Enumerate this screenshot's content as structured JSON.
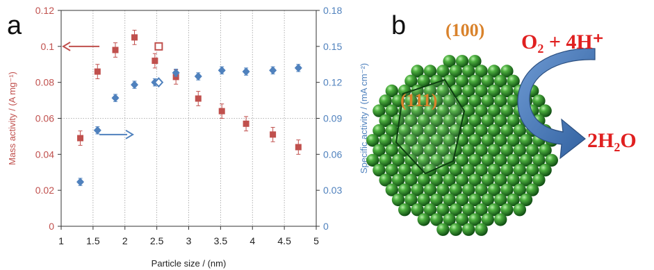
{
  "panel_a_label": "a",
  "panel_b_label": "b",
  "colors": {
    "mass": "#c0504d",
    "specific": "#4f81bd",
    "sphere": "#2f8f2f",
    "arrow": "#4a7fc1",
    "facet_text": "#d9822b",
    "reaction_text": "#e02020"
  },
  "chart_data": {
    "type": "scatter",
    "xlabel": "Particle size / (nm)",
    "ylabel_left": "Mass activity / (A mg⁻¹)",
    "ylabel_right": "Specific activity / (mA cm⁻²)",
    "xlim": [
      1,
      5
    ],
    "ylim_left": [
      0,
      0.12
    ],
    "ylim_right": [
      0,
      0.18
    ],
    "xticks": [
      "1",
      "1.5",
      "2",
      "2.5",
      "3",
      "3.5",
      "4",
      "4.5",
      "5"
    ],
    "yticks_left": [
      "0",
      "0.02",
      "0.04",
      "0.06",
      "0.08",
      "0.1",
      "0.12"
    ],
    "yticks_right": [
      "0",
      "0.03",
      "0.06",
      "0.09",
      "0.12",
      "0.15",
      "0.18"
    ],
    "grid": "vertical dotted lines at x ticks, horizontal dotted line at 0.06",
    "series": [
      {
        "axis": "left",
        "marker": "square",
        "x": [
          1.3,
          1.57,
          1.85,
          2.15,
          2.47,
          2.8,
          3.15,
          3.52,
          3.9,
          4.32,
          4.72
        ],
        "y": [
          0.049,
          0.086,
          0.098,
          0.105,
          0.092,
          0.083,
          0.071,
          0.064,
          0.057,
          0.051,
          0.044
        ],
        "err": [
          0.004,
          0.004,
          0.004,
          0.004,
          0.004,
          0.004,
          0.004,
          0.004,
          0.004,
          0.004,
          0.004
        ]
      },
      {
        "axis": "right",
        "marker": "diamond",
        "x": [
          1.3,
          1.57,
          1.85,
          2.15,
          2.47,
          2.8,
          3.15,
          3.52,
          3.9,
          4.32,
          4.72
        ],
        "y": [
          0.037,
          0.08,
          0.107,
          0.118,
          0.12,
          0.128,
          0.125,
          0.13,
          0.129,
          0.13,
          0.132
        ],
        "err": [
          0.003,
          0.003,
          0.003,
          0.003,
          0.003,
          0.003,
          0.003,
          0.003,
          0.003,
          0.003,
          0.003
        ]
      }
    ],
    "open_markers": [
      {
        "axis": "left",
        "marker": "open-square",
        "x": 2.53,
        "y": 0.1
      },
      {
        "axis": "right",
        "marker": "open-diamond",
        "x": 2.53,
        "y": 0.12
      }
    ],
    "annotations": [
      {
        "type": "arrow",
        "points_to": "left-axis",
        "at_x": 1.6,
        "at_y_left": 0.1
      },
      {
        "type": "arrow",
        "points_to": "right-axis",
        "at_x": 1.6,
        "at_y_left": 0.051
      }
    ]
  },
  "panel_b": {
    "facet_100": "(100)",
    "facet_111": "(111)",
    "reactant": "O₂ + 4H⁺",
    "product": "2H₂O"
  }
}
